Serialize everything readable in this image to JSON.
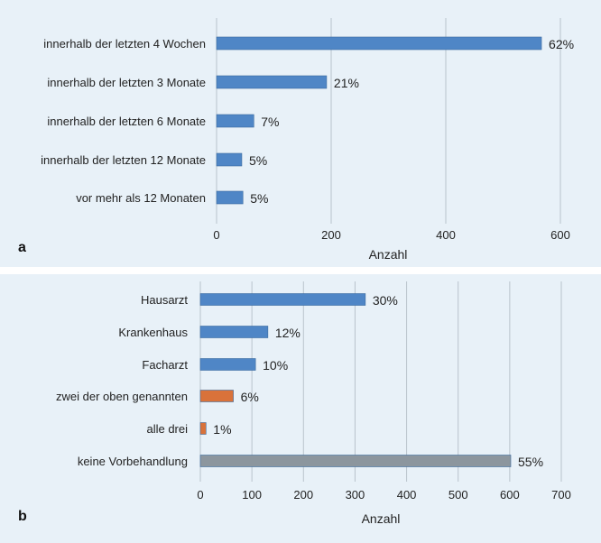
{
  "chart_data": [
    {
      "type": "bar",
      "orientation": "horizontal",
      "panel_label": "a",
      "categories": [
        "innerhalb der letzten 4 Wochen",
        "innerhalb der letzten 3 Monate",
        "innerhalb der letzten 6 Monate",
        "innerhalb der letzten 12 Monate",
        "vor mehr als 12 Monaten"
      ],
      "values": [
        567,
        192,
        65,
        44,
        46
      ],
      "data_labels": [
        "62%",
        "21%",
        "7%",
        "5%",
        "5%"
      ],
      "bar_colors": [
        "#4f86c6",
        "#4f86c6",
        "#4f86c6",
        "#4f86c6",
        "#4f86c6"
      ],
      "xlabel": "Anzahl",
      "xlim": [
        0,
        600
      ],
      "xticks": [
        "0",
        "200",
        "400",
        "600"
      ],
      "xtick_values": [
        0,
        200,
        400,
        600
      ],
      "grid": true
    },
    {
      "type": "bar",
      "orientation": "horizontal",
      "panel_label": "b",
      "categories": [
        "Hausarzt",
        "Krankenhaus",
        "Facharzt",
        "zwei der oben genannten",
        "alle drei",
        "keine Vorbehandlung"
      ],
      "values": [
        320,
        131,
        107,
        64,
        11,
        602
      ],
      "data_labels": [
        "30%",
        "12%",
        "10%",
        "6%",
        "1%",
        "55%"
      ],
      "bar_colors": [
        "#4f86c6",
        "#4f86c6",
        "#4f86c6",
        "#d9723a",
        "#d9723a",
        "#8c969e"
      ],
      "xlabel": "Anzahl",
      "xlim": [
        0,
        700
      ],
      "xticks": [
        "0",
        "100",
        "200",
        "300",
        "400",
        "500",
        "600",
        "700"
      ],
      "xtick_values": [
        0,
        100,
        200,
        300,
        400,
        500,
        600,
        700
      ],
      "grid": true
    }
  ]
}
